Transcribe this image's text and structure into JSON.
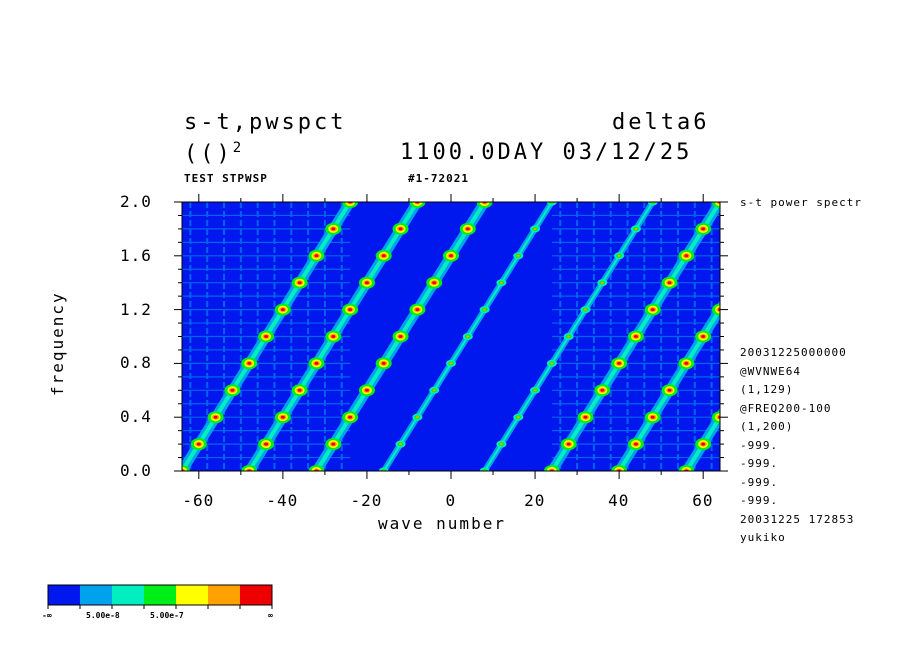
{
  "header": {
    "left_line1": "s-t,pwspct",
    "left_line2": "(()",
    "left_line2_sup": "2",
    "right_line1": "delta6",
    "right_line2": "1100.0DAY 03/12/25",
    "sub_left": "TEST STPWSP",
    "sub_mid": "#1-72021"
  },
  "side_info": {
    "title": "s-t power spectr",
    "lines": [
      "20031225000000",
      "@WVNWE64",
      "(1,129)",
      "@FREQ200-100",
      "(1,200)",
      "-999.",
      "-999.",
      "-999.",
      "-999.",
      "20031225 172853",
      "yukiko"
    ]
  },
  "colorbar": {
    "colors": [
      "#0018ee",
      "#00a2ee",
      "#00eec0",
      "#00ee18",
      "#ffff00",
      "#ffa200",
      "#ee0000"
    ],
    "labels": [
      "-∞",
      "5.00e-8",
      "5.00e-7",
      "∞"
    ]
  },
  "chart_data": {
    "type": "heatmap",
    "title": "",
    "xlabel": "wave number",
    "ylabel": "frequency",
    "xlim": [
      -64,
      64
    ],
    "ylim": [
      0.0,
      2.0
    ],
    "xticks": [
      "-60",
      "-40",
      "-20",
      "0",
      "20",
      "40",
      "60"
    ],
    "xtick_values": [
      -60,
      -40,
      -20,
      0,
      20,
      40,
      60
    ],
    "yticks": [
      "0.0",
      "0.4",
      "0.8",
      "1.2",
      "1.6",
      "2.0"
    ],
    "ytick_values": [
      0.0,
      0.4,
      0.8,
      1.2,
      1.6,
      2.0
    ],
    "background_level_color": "#0018ee",
    "color_levels": [
      "#0018ee",
      "#00a2ee",
      "#00eec0",
      "#00ee18",
      "#ffff00",
      "#ffa200",
      "#ee0000"
    ],
    "ridges": [
      {
        "name": "",
        "slope_freq_per_wavenumber": 0.05,
        "x_at_freq0": -64,
        "peak_spacing_freq": 0.2
      },
      {
        "name": "",
        "slope_freq_per_wavenumber": 0.05,
        "x_at_freq0": -48,
        "peak_spacing_freq": 0.2
      },
      {
        "name": "",
        "slope_freq_per_wavenumber": 0.05,
        "x_at_freq0": -32,
        "peak_spacing_freq": 0.2
      },
      {
        "name": "",
        "slope_freq_per_wavenumber": 0.05,
        "x_at_freq0": -16,
        "peak_spacing_freq": 0.2
      },
      {
        "name": "",
        "slope_freq_per_wavenumber": 0.05,
        "x_at_freq0": 8,
        "peak_spacing_freq": 0.2
      },
      {
        "name": "",
        "slope_freq_per_wavenumber": 0.05,
        "x_at_freq0": 24,
        "peak_spacing_freq": 0.2
      },
      {
        "name": "",
        "slope_freq_per_wavenumber": 0.05,
        "x_at_freq0": 40,
        "peak_spacing_freq": 0.2
      },
      {
        "name": "",
        "slope_freq_per_wavenumber": 0.05,
        "x_at_freq0": 56,
        "peak_spacing_freq": 0.2
      }
    ]
  }
}
